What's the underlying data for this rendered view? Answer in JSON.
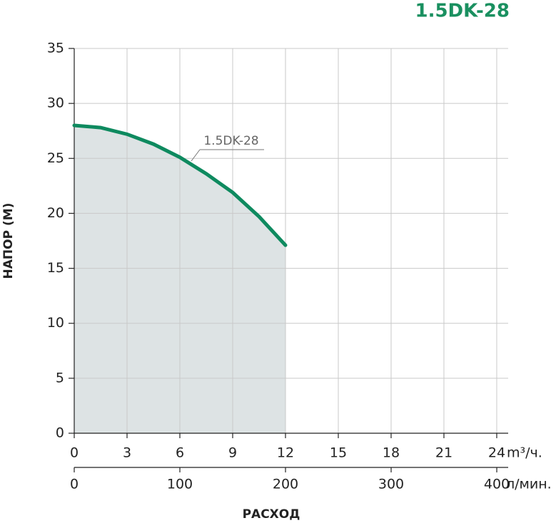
{
  "chart_data": {
    "type": "area",
    "title": "1.5DK-28",
    "x_label": "РАСХОД",
    "y_label": "НАПОР (М)",
    "x_unit": "m³/ч.",
    "x2_unit": "л/мин.",
    "x": [
      0,
      1.5,
      3,
      4.5,
      6,
      7.5,
      9,
      10.5,
      12
    ],
    "series": [
      {
        "name": "1.5DK-28",
        "color": "#0e8a5f",
        "fill": "#dde3e4",
        "values": [
          28,
          27.8,
          27.2,
          26.3,
          25.1,
          23.6,
          21.9,
          19.7,
          17.1
        ]
      }
    ],
    "xlim": [
      0,
      24.65
    ],
    "xticks": [
      0,
      3,
      6,
      9,
      12,
      15,
      18,
      21,
      24
    ],
    "x2lim": [
      0,
      410.8
    ],
    "x2ticks": [
      0,
      100,
      200,
      300,
      400
    ],
    "ylim": [
      0,
      35
    ],
    "yticks": [
      0,
      5,
      10,
      15,
      20,
      25,
      30,
      35
    ],
    "grid": true
  }
}
